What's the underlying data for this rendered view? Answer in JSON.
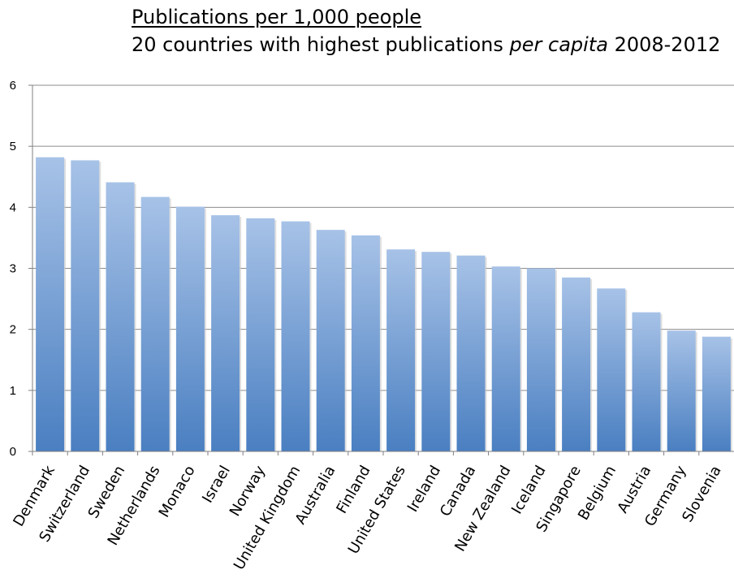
{
  "chart_data": {
    "type": "bar",
    "title": "Publications per 1,000 people",
    "subtitle_before": "20 countries with highest publications ",
    "subtitle_italic": "per capita",
    "subtitle_after": " 2008-2012",
    "xlabel": "",
    "ylabel": "",
    "ylim": [
      0,
      6
    ],
    "yticks": [
      "0",
      "1",
      "2",
      "3",
      "4",
      "5",
      "6"
    ],
    "grid": true,
    "legend": "none",
    "categories": [
      "Denmark",
      "Switzerland",
      "Sweden",
      "Netherlands",
      "Monaco",
      "Israel",
      "Norway",
      "United Kingdom",
      "Australia",
      "Finland",
      "United States",
      "Ireland",
      "Canada",
      "New Zealand",
      "Iceland",
      "Singapore",
      "Belgium",
      "Austria",
      "Germany",
      "Slovenia"
    ],
    "values": [
      4.82,
      4.77,
      4.41,
      4.17,
      4.01,
      3.87,
      3.82,
      3.77,
      3.63,
      3.54,
      3.31,
      3.27,
      3.21,
      3.03,
      3.0,
      2.85,
      2.67,
      2.28,
      1.98,
      1.88
    ],
    "bar_color_top": "#a7c2e7",
    "bar_color_bottom": "#4a7fc1"
  }
}
